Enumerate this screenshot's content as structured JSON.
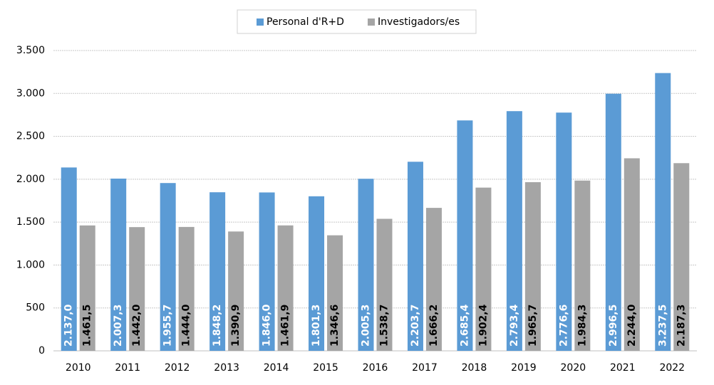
{
  "chart_data": {
    "type": "bar",
    "categories": [
      "2010",
      "2011",
      "2012",
      "2013",
      "2014",
      "2015",
      "2016",
      "2017",
      "2018",
      "2019",
      "2020",
      "2021",
      "2022"
    ],
    "series": [
      {
        "name": "Personal d'R+D",
        "color": "#5b9bd5",
        "values": [
          2137.0,
          2007.3,
          1955.7,
          1848.2,
          1846.0,
          1801.3,
          2005.3,
          2203.7,
          2685.4,
          2793.4,
          2776.6,
          2996.5,
          3237.5
        ],
        "value_labels": [
          "2.137,0",
          "2.007,3",
          "1.955,7",
          "1.848,2",
          "1.846,0",
          "1.801,3",
          "2.005,3",
          "2.203,7",
          "2.685,4",
          "2.793,4",
          "2.776,6",
          "2.996,5",
          "3.237,5"
        ]
      },
      {
        "name": "Investigadors/es",
        "color": "#a5a5a5",
        "values": [
          1461.5,
          1442.0,
          1444.0,
          1390.9,
          1461.9,
          1346.6,
          1538.7,
          1666.2,
          1902.4,
          1965.7,
          1984.3,
          2244.0,
          2187.3
        ],
        "value_labels": [
          "1.461,5",
          "1.442,0",
          "1.444,0",
          "1.390,9",
          "1.461,9",
          "1.346,6",
          "1.538,7",
          "1.666,2",
          "1.902,4",
          "1.965,7",
          "1.984,3",
          "2.244,0",
          "2.187,3"
        ]
      }
    ],
    "ylim": [
      0,
      3500
    ],
    "yticks": [
      0,
      500,
      {
        "value": 1000,
        "label": "1.000"
      },
      {
        "value": 1500,
        "label": "1.500"
      },
      {
        "value": 2000,
        "label": "2.000"
      },
      {
        "value": 2500,
        "label": "2.500"
      },
      {
        "value": 3000,
        "label": "3.000"
      },
      {
        "value": 3500,
        "label": "3.500"
      }
    ],
    "grid": true,
    "legend": "top"
  }
}
